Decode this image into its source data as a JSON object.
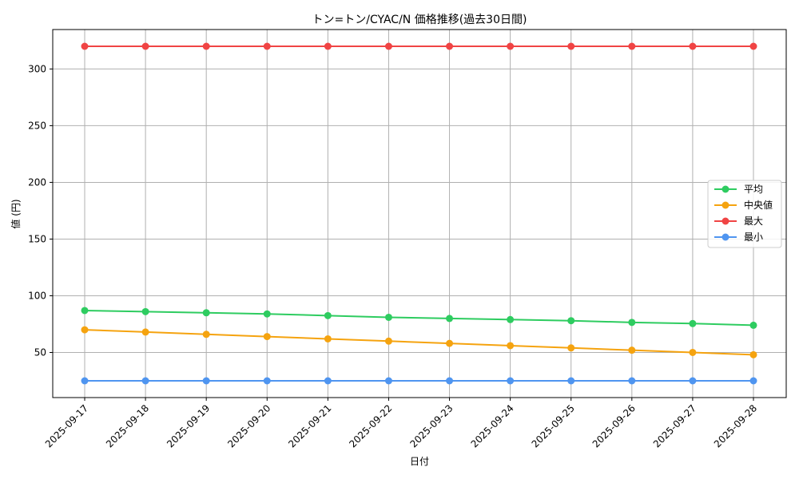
{
  "chart_data": {
    "type": "line",
    "title": "トン=トン/CYAC/N 価格推移(過去30日間)",
    "xlabel": "日付",
    "ylabel": "値 (円)",
    "categories": [
      "2025-09-17",
      "2025-09-18",
      "2025-09-19",
      "2025-09-20",
      "2025-09-21",
      "2025-09-22",
      "2025-09-23",
      "2025-09-24",
      "2025-09-25",
      "2025-09-26",
      "2025-09-27",
      "2025-09-28"
    ],
    "ylim": [
      10,
      335
    ],
    "yticks": [
      50,
      100,
      150,
      200,
      250,
      300
    ],
    "grid": true,
    "legend_position": "center-right",
    "series": [
      {
        "name": "平均",
        "color": "#2ecc60",
        "values": [
          87,
          86,
          85,
          84,
          82.5,
          81,
          80,
          79,
          78,
          76.5,
          75.5,
          74
        ]
      },
      {
        "name": "中央値",
        "color": "#f5a30f",
        "values": [
          70,
          68,
          66,
          64,
          62,
          60,
          58,
          56,
          54,
          52,
          50,
          48
        ]
      },
      {
        "name": "最大",
        "color": "#f04444",
        "values": [
          320,
          320,
          320,
          320,
          320,
          320,
          320,
          320,
          320,
          320,
          320,
          320
        ]
      },
      {
        "name": "最小",
        "color": "#4f95f0",
        "values": [
          25,
          25,
          25,
          25,
          25,
          25,
          25,
          25,
          25,
          25,
          25,
          25
        ]
      }
    ]
  }
}
